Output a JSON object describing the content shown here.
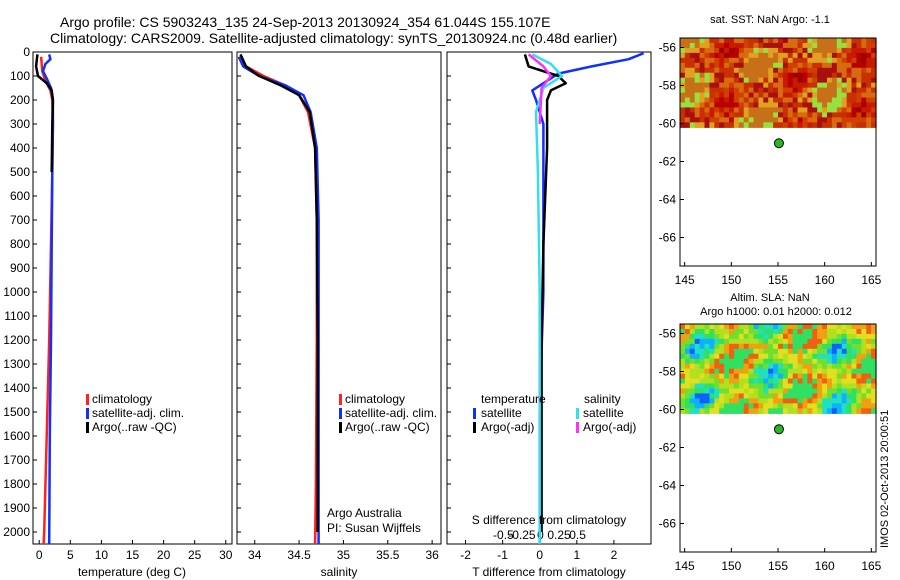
{
  "header": {
    "line1": "Argo profile: CS 5903243_135 24-Sep-2013 20130924_354 61.044S 155.107E",
    "line2": "Climatology: CARS2009. Satellite-adjusted climatology: synTS_20130924.nc (0.48d earlier)"
  },
  "credit": {
    "line1": "Argo Australia",
    "line2": "PI: Susan Wijffels"
  },
  "side_stamp": "IMOS 02-Oct-2013 20:00:51",
  "colors": {
    "climatology": "#ff2020",
    "satellite": "#1030ff",
    "argo": "#000000",
    "satellite_s": "#30e0f0",
    "argo_s": "#ff30ff",
    "float_marker": "#22bb22"
  },
  "chart_data": [
    {
      "type": "line",
      "panel": "temperature",
      "xlabel": "temperature (deg C)",
      "xlim": [
        -1,
        31
      ],
      "ylim": [
        0,
        2050
      ],
      "y_reversed": true,
      "xticks": [
        0,
        5,
        10,
        15,
        20,
        25,
        30
      ],
      "yticks": [
        0,
        100,
        200,
        300,
        400,
        500,
        600,
        700,
        800,
        900,
        1000,
        1100,
        1200,
        1300,
        1400,
        1500,
        1600,
        1700,
        1800,
        1900,
        2000
      ],
      "legend": [
        "climatology",
        "satellite-adj. clim.",
        "Argo(..raw -QC)"
      ],
      "series": [
        {
          "name": "climatology",
          "color": "climatology",
          "points": [
            [
              0.3,
              20
            ],
            [
              0.5,
              80
            ],
            [
              1.0,
              120
            ],
            [
              1.8,
              160
            ],
            [
              2.1,
              200
            ],
            [
              2.2,
              300
            ],
            [
              2.1,
              500
            ],
            [
              1.9,
              800
            ],
            [
              1.6,
              1200
            ],
            [
              1.2,
              1600
            ],
            [
              0.8,
              2000
            ],
            [
              0.7,
              2050
            ]
          ]
        },
        {
          "name": "satellite-adj. clim.",
          "color": "satellite",
          "points": [
            [
              1.6,
              10
            ],
            [
              1.8,
              30
            ],
            [
              1.0,
              50
            ],
            [
              0.6,
              80
            ],
            [
              1.2,
              110
            ],
            [
              1.9,
              150
            ],
            [
              2.2,
              200
            ],
            [
              2.2,
              300
            ],
            [
              2.1,
              500
            ],
            [
              2.0,
              800
            ],
            [
              1.9,
              1200
            ],
            [
              1.7,
              1600
            ],
            [
              1.6,
              2050
            ]
          ]
        },
        {
          "name": "Argo(..raw -QC)",
          "color": "argo",
          "points": [
            [
              -0.3,
              10
            ],
            [
              -0.5,
              60
            ],
            [
              -0.2,
              100
            ],
            [
              1.2,
              130
            ],
            [
              2.0,
              160
            ],
            [
              2.2,
              200
            ],
            [
              2.1,
              300
            ],
            [
              2.0,
              500
            ]
          ]
        }
      ]
    },
    {
      "type": "line",
      "panel": "salinity",
      "xlabel": "salinity",
      "xlim": [
        33.8,
        36.1
      ],
      "ylim": [
        0,
        2050
      ],
      "y_reversed": true,
      "xticks": [
        34,
        34.5,
        35,
        35.5,
        36
      ],
      "legend": [
        "climatology",
        "satellite-adj. clim.",
        "Argo(..raw -QC)"
      ],
      "series": [
        {
          "name": "climatology",
          "color": "climatology",
          "points": [
            [
              33.85,
              20
            ],
            [
              33.9,
              60
            ],
            [
              34.1,
              100
            ],
            [
              34.35,
              140
            ],
            [
              34.5,
              180
            ],
            [
              34.6,
              250
            ],
            [
              34.68,
              400
            ],
            [
              34.7,
              700
            ],
            [
              34.7,
              1200
            ],
            [
              34.69,
              1800
            ],
            [
              34.68,
              2050
            ]
          ]
        },
        {
          "name": "satellite-adj. clim.",
          "color": "satellite",
          "points": [
            [
              33.82,
              20
            ],
            [
              33.87,
              60
            ],
            [
              34.05,
              100
            ],
            [
              34.35,
              140
            ],
            [
              34.55,
              180
            ],
            [
              34.63,
              250
            ],
            [
              34.7,
              400
            ],
            [
              34.72,
              700
            ],
            [
              34.72,
              1200
            ],
            [
              34.72,
              2000
            ],
            [
              34.72,
              2050
            ]
          ]
        },
        {
          "name": "Argo(..raw -QC)",
          "color": "argo",
          "points": [
            [
              33.84,
              10
            ],
            [
              33.9,
              60
            ],
            [
              34.05,
              100
            ],
            [
              34.3,
              140
            ],
            [
              34.5,
              180
            ],
            [
              34.62,
              250
            ],
            [
              34.68,
              400
            ],
            [
              34.7,
              700
            ],
            [
              34.71,
              1200
            ],
            [
              34.71,
              2000
            ]
          ]
        }
      ]
    },
    {
      "type": "line",
      "panel": "difference",
      "xlabel": "T difference from climatology",
      "title_bottom": "S difference from climatology",
      "xlim_T": [
        -2.5,
        3
      ],
      "xticks_T": [
        -2,
        -1,
        0,
        1,
        2
      ],
      "xticks_S": [
        "-0.5",
        "-0.25",
        "0",
        "0.25",
        "0.5"
      ],
      "ylim": [
        0,
        2050
      ],
      "y_reversed": true,
      "legend_temperature_title": "temperature",
      "legend_salinity_title": "salinity",
      "legend_temperature": [
        "satellite",
        "Argo(-adj)"
      ],
      "legend_salinity": [
        "satellite",
        "Argo(-adj)"
      ],
      "series": [
        {
          "name": "satellite",
          "color": "satellite",
          "points": [
            [
              2.8,
              5
            ],
            [
              2.4,
              30
            ],
            [
              1.4,
              60
            ],
            [
              0.5,
              90
            ],
            [
              0.2,
              120
            ],
            [
              -0.2,
              160
            ],
            [
              -0.1,
              200
            ],
            [
              0.1,
              300
            ],
            [
              0.1,
              600
            ],
            [
              0.1,
              1000
            ],
            [
              0.0,
              1500
            ],
            [
              0.0,
              2050
            ]
          ]
        },
        {
          "name": "Argo(-adj)",
          "color": "argo",
          "points": [
            [
              -0.4,
              10
            ],
            [
              -0.3,
              60
            ],
            [
              0.5,
              100
            ],
            [
              0.7,
              130
            ],
            [
              0.3,
              160
            ],
            [
              0.2,
              200
            ],
            [
              0.2,
              400
            ],
            [
              0.1,
              800
            ],
            [
              0.05,
              1200
            ],
            [
              0.05,
              2000
            ]
          ]
        },
        {
          "name": "satellite S",
          "color": "satellite_s",
          "points": [
            [
              -0.2,
              10
            ],
            [
              0.3,
              50
            ],
            [
              0.6,
              100
            ],
            [
              0.1,
              150
            ],
            [
              -0.1,
              250
            ],
            [
              -0.05,
              500
            ],
            [
              0.0,
              1000
            ],
            [
              0.0,
              2050
            ]
          ]
        },
        {
          "name": "Argo(-adj) S",
          "color": "argo_s",
          "points": [
            [
              -0.3,
              10
            ],
            [
              0.1,
              60
            ],
            [
              0.3,
              100
            ],
            [
              0.05,
              150
            ],
            [
              0.0,
              300
            ]
          ]
        }
      ]
    },
    {
      "type": "heatmap",
      "panel": "sst_map",
      "title": "sat. SST: NaN Argo: -1.1",
      "xlim": [
        144.5,
        165.5
      ],
      "ylim": [
        -67.5,
        -55.5
      ],
      "xticks": [
        145,
        150,
        155,
        160,
        165
      ],
      "yticks": [
        -56,
        -58,
        -60,
        -62,
        -64,
        -66
      ],
      "data_ylim": [
        -60.2,
        -55.5
      ],
      "float_position": [
        155.1,
        -61.04
      ]
    },
    {
      "type": "heatmap",
      "panel": "sla_map",
      "title": "Altim. SLA: NaN",
      "subtitle": "Argo h1000: 0.01 h2000: 0.012",
      "xlim": [
        144.5,
        165.5
      ],
      "ylim": [
        -67.5,
        -55.5
      ],
      "xticks": [
        145,
        150,
        155,
        160,
        165
      ],
      "yticks": [
        -56,
        -58,
        -60,
        -62,
        -64,
        -66
      ],
      "data_ylim": [
        -60.2,
        -55.5
      ],
      "float_position": [
        155.1,
        -61.04
      ]
    }
  ]
}
